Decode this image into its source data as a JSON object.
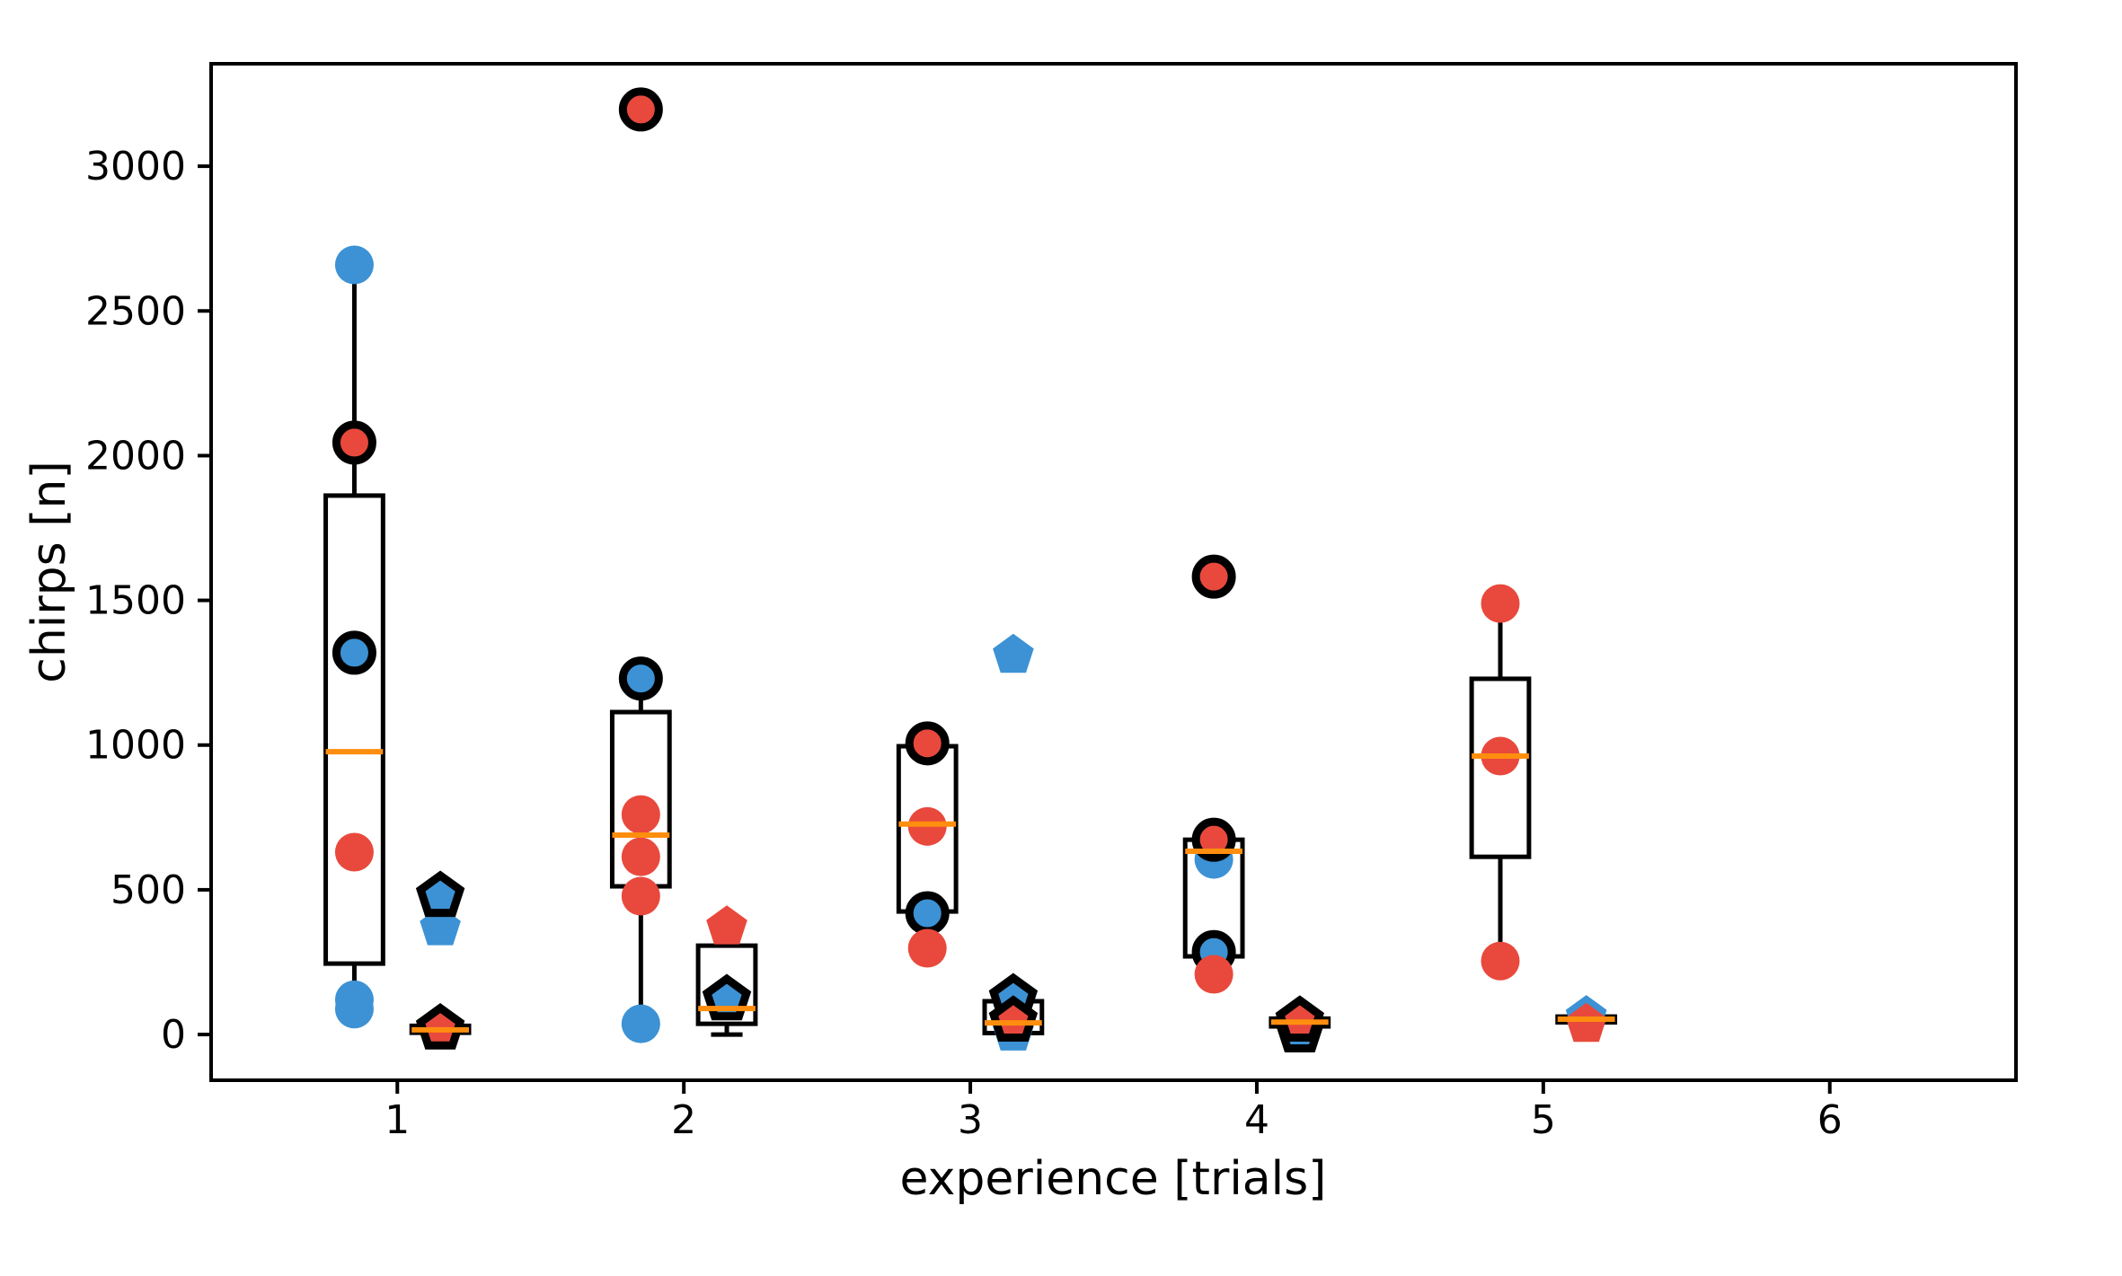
{
  "chart_data": {
    "type": "boxplot-scatter",
    "title": "",
    "xlabel": "experience [trials]",
    "ylabel": "chirps [n]",
    "xlim": [
      0.35,
      6.65
    ],
    "ylim": [
      -158,
      3354
    ],
    "xticks": [
      1,
      2,
      3,
      4,
      5,
      6
    ],
    "xtick_labels": [
      "1",
      "2",
      "3",
      "4",
      "5",
      "6"
    ],
    "yticks": [
      0,
      500,
      1000,
      1500,
      2000,
      2500,
      3000
    ],
    "ytick_labels": [
      "0",
      "500",
      "1000",
      "1500",
      "2000",
      "2500",
      "3000"
    ],
    "grid": false,
    "legend": false,
    "colors": {
      "blue_marker": "#3c92d4",
      "red_marker": "#e8493c",
      "median_line": "#ff8e0e",
      "box_line": "#000000",
      "marker_edge": "#000000"
    },
    "box_width": 0.2,
    "groups": [
      {
        "trial": 1,
        "marker": "circle",
        "x": 0.85,
        "box": {
          "q1": 245,
          "median": 977,
          "q3": 1862,
          "whisker_low": 85,
          "whisker_high": 2659
        },
        "points": [
          {
            "value": 2659,
            "color": "blue",
            "black_edge": false
          },
          {
            "value": 2045,
            "color": "red",
            "black_edge": true
          },
          {
            "value": 1319,
            "color": "blue",
            "black_edge": true
          },
          {
            "value": 630,
            "color": "red",
            "black_edge": false
          },
          {
            "value": 120,
            "color": "blue",
            "black_edge": false
          },
          {
            "value": 88,
            "color": "blue",
            "black_edge": false
          }
        ]
      },
      {
        "trial": 1,
        "marker": "pentagon",
        "x": 1.15,
        "box": {
          "q1": 6,
          "median": 16,
          "q3": 30,
          "whisker_low": 2,
          "whisker_high": 34
        },
        "points": [
          {
            "value": 369,
            "color": "blue",
            "black_edge": false
          },
          {
            "value": 478,
            "color": "blue",
            "black_edge": true
          },
          {
            "value": 33,
            "color": "red",
            "black_edge": false
          },
          {
            "value": 20,
            "color": "red",
            "black_edge": true
          }
        ]
      },
      {
        "trial": 2,
        "marker": "circle",
        "x": 1.85,
        "box": {
          "q1": 512,
          "median": 689,
          "q3": 1114,
          "whisker_low": 37,
          "whisker_high": 1230
        },
        "points": [
          {
            "value": 3196,
            "color": "red",
            "black_edge": true
          },
          {
            "value": 1230,
            "color": "blue",
            "black_edge": true
          },
          {
            "value": 760,
            "color": "red",
            "black_edge": false
          },
          {
            "value": 614,
            "color": "red",
            "black_edge": false
          },
          {
            "value": 478,
            "color": "red",
            "black_edge": false
          },
          {
            "value": 37,
            "color": "blue",
            "black_edge": false
          }
        ]
      },
      {
        "trial": 2,
        "marker": "pentagon",
        "x": 2.15,
        "box": {
          "q1": 37,
          "median": 90,
          "q3": 307,
          "whisker_low": 0,
          "whisker_high": 372
        },
        "points": [
          {
            "value": 372,
            "color": "red",
            "black_edge": false
          },
          {
            "value": 121,
            "color": "blue",
            "black_edge": true
          }
        ]
      },
      {
        "trial": 3,
        "marker": "circle",
        "x": 2.85,
        "box": {
          "q1": 425,
          "median": 727,
          "q3": 996,
          "whisker_low": 298,
          "whisker_high": 1006
        },
        "points": [
          {
            "value": 1006,
            "color": "red",
            "black_edge": true
          },
          {
            "value": 719,
            "color": "red",
            "black_edge": false
          },
          {
            "value": 419,
            "color": "blue",
            "black_edge": true
          },
          {
            "value": 298,
            "color": "red",
            "black_edge": false
          }
        ]
      },
      {
        "trial": 3,
        "marker": "pentagon",
        "x": 3.15,
        "box": {
          "q1": 5,
          "median": 40,
          "q3": 115,
          "whisker_low": 0,
          "whisker_high": 124
        },
        "points": [
          {
            "value": 1310,
            "color": "blue",
            "black_edge": false
          },
          {
            "value": 5,
            "color": "blue",
            "black_edge": false
          },
          {
            "value": 124,
            "color": "blue",
            "black_edge": true
          },
          {
            "value": 47,
            "color": "red",
            "black_edge": true
          }
        ]
      },
      {
        "trial": 4,
        "marker": "circle",
        "x": 3.85,
        "box": {
          "q1": 270,
          "median": 633,
          "q3": 673,
          "whisker_low": 208,
          "whisker_high": 673
        },
        "points": [
          {
            "value": 1582,
            "color": "red",
            "black_edge": true
          },
          {
            "value": 605,
            "color": "blue",
            "black_edge": false
          },
          {
            "value": 673,
            "color": "red",
            "black_edge": true
          },
          {
            "value": 285,
            "color": "blue",
            "black_edge": true
          },
          {
            "value": 208,
            "color": "red",
            "black_edge": false
          }
        ]
      },
      {
        "trial": 4,
        "marker": "pentagon",
        "x": 4.15,
        "box": {
          "q1": 28,
          "median": 43,
          "q3": 55,
          "whisker_low": 8,
          "whisker_high": 60
        },
        "points": [
          {
            "value": 10,
            "color": "blue",
            "black_edge": true
          },
          {
            "value": 47,
            "color": "red",
            "black_edge": true
          }
        ]
      },
      {
        "trial": 5,
        "marker": "circle",
        "x": 4.85,
        "box": {
          "q1": 614,
          "median": 962,
          "q3": 1229,
          "whisker_low": 254,
          "whisker_high": 1489
        },
        "points": [
          {
            "value": 1489,
            "color": "red",
            "black_edge": false
          },
          {
            "value": 962,
            "color": "red",
            "black_edge": false
          },
          {
            "value": 254,
            "color": "red",
            "black_edge": false
          }
        ]
      },
      {
        "trial": 5,
        "marker": "pentagon",
        "x": 5.15,
        "box": {
          "q1": 42,
          "median": 53,
          "q3": 62,
          "whisker_low": 35,
          "whisker_high": 66
        },
        "points": [
          {
            "value": 62,
            "color": "blue",
            "black_edge": false
          },
          {
            "value": 35,
            "color": "red",
            "black_edge": false
          }
        ]
      }
    ]
  }
}
